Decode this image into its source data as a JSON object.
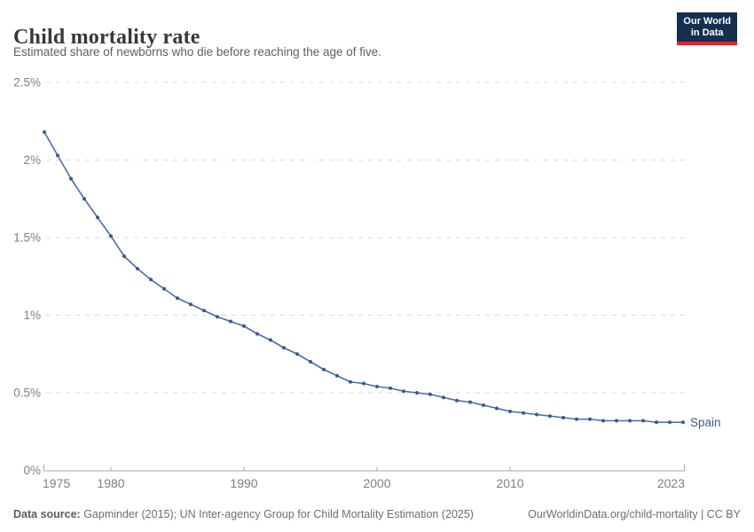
{
  "header": {
    "title": "Child mortality rate",
    "subtitle": "Estimated share of newborns who die before reaching the age of five."
  },
  "logo": {
    "line1": "Our World",
    "line2": "in Data",
    "bg_color": "#142f4f",
    "accent_color": "#e0262f"
  },
  "chart_data": {
    "type": "line",
    "title": "Child mortality rate",
    "xlabel": "",
    "ylabel": "",
    "xlim": [
      1975,
      2023
    ],
    "ylim": [
      0,
      2.5
    ],
    "grid": "horizontal-dashed",
    "legend_position": "end-of-line",
    "x_ticks": [
      {
        "label": "1975",
        "value": 1975
      },
      {
        "label": "1980",
        "value": 1980
      },
      {
        "label": "1990",
        "value": 1990
      },
      {
        "label": "2000",
        "value": 2000
      },
      {
        "label": "2010",
        "value": 2010
      },
      {
        "label": "2023",
        "value": 2023
      }
    ],
    "y_ticks": [
      {
        "label": "0%",
        "value": 0
      },
      {
        "label": "0.5%",
        "value": 0.5
      },
      {
        "label": "1%",
        "value": 1
      },
      {
        "label": "1.5%",
        "value": 1.5
      },
      {
        "label": "2%",
        "value": 2
      },
      {
        "label": "2.5%",
        "value": 2.5
      }
    ],
    "series": [
      {
        "name": "Spain",
        "color": "#4b6ba5",
        "marker_color": "#3a5795",
        "label_color": "#3d5c94",
        "x": [
          1975,
          1976,
          1977,
          1978,
          1979,
          1980,
          1981,
          1982,
          1983,
          1984,
          1985,
          1986,
          1987,
          1988,
          1989,
          1990,
          1991,
          1992,
          1993,
          1994,
          1995,
          1996,
          1997,
          1998,
          1999,
          2000,
          2001,
          2002,
          2003,
          2004,
          2005,
          2006,
          2007,
          2008,
          2009,
          2010,
          2011,
          2012,
          2013,
          2014,
          2015,
          2016,
          2017,
          2018,
          2019,
          2020,
          2021,
          2022,
          2023
        ],
        "values": [
          2.18,
          2.03,
          1.88,
          1.75,
          1.63,
          1.51,
          1.38,
          1.3,
          1.23,
          1.17,
          1.11,
          1.07,
          1.03,
          0.99,
          0.96,
          0.93,
          0.88,
          0.84,
          0.79,
          0.75,
          0.7,
          0.65,
          0.61,
          0.57,
          0.56,
          0.54,
          0.53,
          0.51,
          0.5,
          0.49,
          0.47,
          0.45,
          0.44,
          0.42,
          0.4,
          0.38,
          0.37,
          0.36,
          0.35,
          0.34,
          0.33,
          0.33,
          0.32,
          0.32,
          0.32,
          0.32,
          0.31,
          0.31,
          0.31
        ]
      }
    ],
    "colors": {
      "gridline": "#dcdcdc",
      "axis": "#a8a8a8",
      "tick_label": "#7f7f7f"
    }
  },
  "footer": {
    "source_label": "Data source:",
    "source_text": " Gapminder (2015); UN Inter-agency Group for Child Mortality Estimation (2025)",
    "link_text": "OurWorldinData.org/child-mortality | CC BY"
  }
}
